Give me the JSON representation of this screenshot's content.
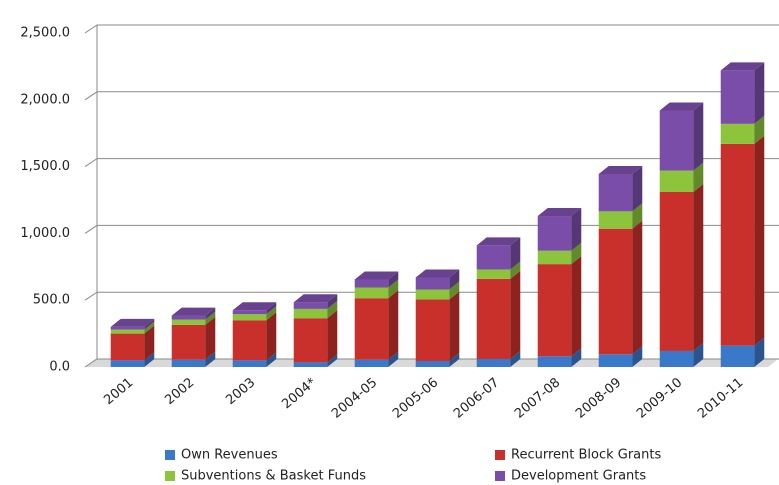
{
  "chart_data": {
    "type": "stacked_bar_3d",
    "categories": [
      "2001",
      "2002",
      "2003",
      "2004*",
      "2004-05",
      "2005-06",
      "2006-07",
      "2007-08",
      "2008-09",
      "2009-10",
      "2010-11"
    ],
    "series": [
      {
        "name": "Own Revenues",
        "color": "#3a78c9",
        "values": [
          50,
          55,
          50,
          35,
          55,
          45,
          60,
          80,
          95,
          120,
          160
        ]
      },
      {
        "name": "Recurrent Block Grants",
        "color": "#c9302c",
        "values": [
          200,
          260,
          300,
          330,
          460,
          460,
          600,
          690,
          940,
          1190,
          1510
        ]
      },
      {
        "name": "Subventions & Basket Funds",
        "color": "#8cc43c",
        "values": [
          30,
          40,
          45,
          70,
          80,
          75,
          70,
          100,
          130,
          160,
          150
        ]
      },
      {
        "name": "Development Grants",
        "color": "#7a4ea8",
        "values": [
          20,
          30,
          30,
          50,
          60,
          90,
          180,
          260,
          280,
          450,
          400
        ]
      }
    ],
    "ylim": [
      0,
      2500
    ],
    "yticks": [
      {
        "value": 0,
        "label": "0.0"
      },
      {
        "value": 500,
        "label": "500.0"
      },
      {
        "value": 1000,
        "label": "1,000.0"
      },
      {
        "value": 1500,
        "label": "1,500.0"
      },
      {
        "value": 2000,
        "label": "2,000.0"
      },
      {
        "value": 2500,
        "label": "2,500.0"
      }
    ],
    "grid": true
  }
}
